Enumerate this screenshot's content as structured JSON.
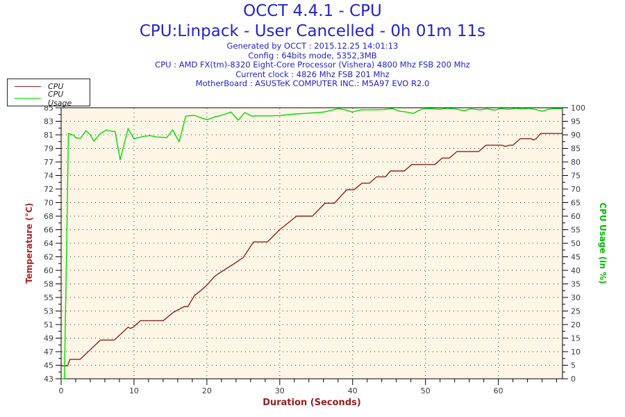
{
  "header": {
    "title": "OCCT 4.4.1 - CPU",
    "subtitle": "CPU:Linpack - User Cancelled - 0h 01m 11s",
    "info_lines": [
      "Generated by OCCT : 2015.12.25 14:01:13",
      "Config : 64bits mode, 5352,3MB",
      "CPU : AMD FX(tm)-8320 Eight-Core Processor (Vishera) 4800 Mhz FSB 200 Mhz",
      "Current clock : 4826 Mhz FSB 201 Mhz",
      "MotherBoard : ASUSTeK COMPUTER INC.: M5A97 EVO R2.0"
    ],
    "title_color": "#2323cc"
  },
  "legend": {
    "items": [
      {
        "label": "CPU",
        "color": "#8b2323"
      },
      {
        "label": "CPU Usage",
        "color": "#00dd00"
      }
    ]
  },
  "chart_data": {
    "type": "line",
    "plot_bg": "#fdf5e6",
    "grid": "dotted",
    "x_axis": {
      "label": "Duration (Seconds)",
      "label_color": "#9b1c1c",
      "min": 0,
      "max": 68.8,
      "major_ticks": [
        0,
        10,
        20,
        30,
        40,
        50,
        60
      ],
      "minor_tick_step": 2,
      "tick_label_color": "#3a3a3a"
    },
    "y_left": {
      "label": "Temperature (°C)",
      "label_color": "#b22222",
      "min": 43,
      "max": 85,
      "tick_labels_top_to_bottom": [
        "85",
        "83",
        "81",
        "79",
        "77",
        "74",
        "72",
        "70",
        "68",
        "66",
        "64",
        "62",
        "60",
        "58",
        "55",
        "53",
        "51",
        "49",
        "47",
        "45",
        "43"
      ],
      "tick_label_color": "#3a3a3a"
    },
    "y_right": {
      "label": "CPU Usage (in %)",
      "label_color": "#00bb00",
      "min": 0,
      "max": 100,
      "tick_labels_top_to_bottom": [
        "100",
        "95",
        "90",
        "85",
        "80",
        "75",
        "70",
        "65",
        "60",
        "55",
        "50",
        "45",
        "40",
        "35",
        "30",
        "25",
        "20",
        "15",
        "10",
        "5",
        "0"
      ],
      "tick_label_color": "#3a3a3a"
    },
    "series": [
      {
        "name": "CPU",
        "axis": "left",
        "color": "#8b2323",
        "points": [
          [
            0,
            45
          ],
          [
            0.9,
            45
          ],
          [
            1.2,
            46
          ],
          [
            2.6,
            46
          ],
          [
            5.4,
            49
          ],
          [
            7.3,
            49
          ],
          [
            9.2,
            51
          ],
          [
            9.5,
            50.8
          ],
          [
            9.9,
            51
          ],
          [
            10.9,
            52
          ],
          [
            14.0,
            52
          ],
          [
            15.4,
            53.3
          ],
          [
            16.9,
            54.2
          ],
          [
            17.4,
            54.2
          ],
          [
            18.3,
            55.9
          ],
          [
            19.2,
            56.7
          ],
          [
            20.0,
            57.5
          ],
          [
            21.0,
            58.8
          ],
          [
            21.6,
            59.3
          ],
          [
            23.7,
            60.8
          ],
          [
            25.0,
            61.8
          ],
          [
            26.4,
            64.2
          ],
          [
            28.3,
            64.2
          ],
          [
            30.0,
            66.1
          ],
          [
            32.3,
            68.2
          ],
          [
            34.5,
            68.2
          ],
          [
            36.2,
            70.2
          ],
          [
            37.5,
            70.2
          ],
          [
            39.2,
            72.3
          ],
          [
            40.2,
            72.3
          ],
          [
            41.3,
            73.3
          ],
          [
            42.3,
            73.3
          ],
          [
            43.3,
            74.3
          ],
          [
            44.5,
            74.3
          ],
          [
            45.2,
            75.2
          ],
          [
            47.1,
            75.2
          ],
          [
            48.1,
            76.2
          ],
          [
            51.3,
            76.2
          ],
          [
            52.3,
            77.2
          ],
          [
            53.3,
            77.2
          ],
          [
            54.3,
            78.2
          ],
          [
            57.3,
            78.2
          ],
          [
            58.3,
            79.2
          ],
          [
            60.5,
            79.2
          ],
          [
            60.9,
            79.0
          ],
          [
            61.6,
            79.2
          ],
          [
            62.0,
            79.2
          ],
          [
            63.0,
            80.2
          ],
          [
            64.5,
            80.2
          ],
          [
            64.8,
            80.0
          ],
          [
            65.2,
            80.2
          ],
          [
            65.8,
            81.0
          ],
          [
            68.8,
            81.0
          ]
        ]
      },
      {
        "name": "CPU Usage",
        "axis": "right",
        "color": "#00dd00",
        "points": [
          [
            0,
            0
          ],
          [
            0.45,
            0
          ],
          [
            0.8,
            55
          ],
          [
            1.0,
            90.5
          ],
          [
            1.6,
            90
          ],
          [
            2.1,
            88.8
          ],
          [
            2.7,
            88.8
          ],
          [
            3.4,
            91.5
          ],
          [
            4.0,
            90
          ],
          [
            4.5,
            87.7
          ],
          [
            5.4,
            90.5
          ],
          [
            6.2,
            91.8
          ],
          [
            7.0,
            91.3
          ],
          [
            7.4,
            91.3
          ],
          [
            8.1,
            80.8
          ],
          [
            9.2,
            92.3
          ],
          [
            10.0,
            88.5
          ],
          [
            10.6,
            89
          ],
          [
            11.5,
            89.5
          ],
          [
            12.2,
            89.7
          ],
          [
            13.1,
            89.2
          ],
          [
            14.5,
            89
          ],
          [
            15.3,
            91.8
          ],
          [
            16.2,
            87.4
          ],
          [
            17.1,
            96.9
          ],
          [
            18.3,
            97.2
          ],
          [
            19.2,
            96.3
          ],
          [
            20.0,
            95.6
          ],
          [
            21.0,
            96.5
          ],
          [
            22.0,
            97.2
          ],
          [
            23.3,
            98.4
          ],
          [
            24.3,
            95.4
          ],
          [
            25.2,
            98.2
          ],
          [
            26.2,
            96.9
          ],
          [
            27.0,
            97.0
          ],
          [
            28.5,
            97.0
          ],
          [
            30.0,
            97.1
          ],
          [
            31.0,
            97.4
          ],
          [
            32.3,
            97.7
          ],
          [
            34.0,
            98.0
          ],
          [
            36.1,
            98.4
          ],
          [
            37.0,
            99.0
          ],
          [
            38.1,
            99.7
          ],
          [
            39.0,
            99.2
          ],
          [
            39.9,
            98.4
          ],
          [
            41.2,
            99.2
          ],
          [
            42.5,
            99.2
          ],
          [
            44.3,
            99.3
          ],
          [
            45.4,
            99.7
          ],
          [
            46.5,
            98.7
          ],
          [
            47.4,
            98.4
          ],
          [
            48.3,
            97.9
          ],
          [
            49.5,
            99.5
          ],
          [
            50.7,
            99.7
          ],
          [
            52.0,
            99.4
          ],
          [
            53.0,
            99.8
          ],
          [
            54.2,
            99.5
          ],
          [
            55.3,
            98.9
          ],
          [
            56.2,
            99.6
          ],
          [
            57.5,
            99.2
          ],
          [
            58.4,
            99.6
          ],
          [
            59.5,
            99.1
          ],
          [
            60.3,
            99.7
          ],
          [
            61.5,
            99.4
          ],
          [
            62.4,
            99.8
          ],
          [
            63.3,
            99.5
          ],
          [
            64.2,
            99.8
          ],
          [
            65.3,
            99.2
          ],
          [
            66.0,
            98.7
          ],
          [
            66.8,
            99.4
          ],
          [
            67.5,
            99.7
          ],
          [
            68.8,
            99.7
          ]
        ]
      }
    ]
  }
}
